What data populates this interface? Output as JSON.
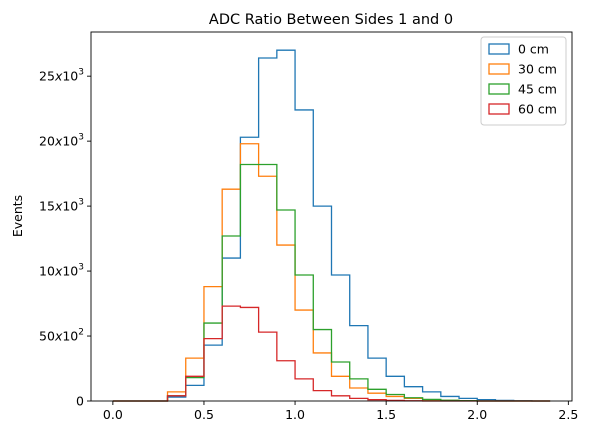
{
  "chart_data": {
    "type": "histogram-step",
    "title": "ADC Ratio Between Sides 1 and 0",
    "xlabel": "",
    "ylabel": "Events",
    "xlim": [
      -0.12,
      2.52
    ],
    "ylim": [
      0,
      28400
    ],
    "bin_edges": [
      0.0,
      0.1,
      0.2,
      0.3,
      0.4,
      0.5,
      0.6,
      0.7,
      0.8,
      0.9,
      1.0,
      1.1,
      1.2,
      1.3,
      1.4,
      1.5,
      1.6,
      1.7,
      1.8,
      1.9,
      2.0,
      2.1,
      2.2,
      2.3,
      2.4
    ],
    "xticks": [
      {
        "value": 0.0,
        "label": "0.0"
      },
      {
        "value": 0.5,
        "label": "0.5"
      },
      {
        "value": 1.0,
        "label": "1.0"
      },
      {
        "value": 1.5,
        "label": "1.5"
      },
      {
        "value": 2.0,
        "label": "2.0"
      },
      {
        "value": 2.5,
        "label": "2.5"
      }
    ],
    "yticks": [
      {
        "value": 0,
        "label": "0"
      },
      {
        "value": 5000,
        "label": "50x10",
        "exp": "2"
      },
      {
        "value": 10000,
        "label": "10x10",
        "exp": "3"
      },
      {
        "value": 15000,
        "label": "15x10",
        "exp": "3"
      },
      {
        "value": 20000,
        "label": "20x10",
        "exp": "3"
      },
      {
        "value": 25000,
        "label": "25x10",
        "exp": "3"
      }
    ],
    "legend_position": "top-right",
    "series": [
      {
        "name": "0 cm",
        "color": "#1f77b4",
        "values": [
          0,
          0,
          0,
          300,
          1200,
          4300,
          11000,
          20300,
          26400,
          27000,
          22400,
          15000,
          9700,
          5800,
          3300,
          1900,
          1100,
          700,
          350,
          200,
          100,
          50,
          20,
          0
        ]
      },
      {
        "name": "30 cm",
        "color": "#ff7f0e",
        "values": [
          0,
          0,
          0,
          700,
          3300,
          8800,
          16300,
          19800,
          17300,
          12000,
          7000,
          3700,
          1900,
          1000,
          600,
          350,
          200,
          100,
          50,
          20,
          0,
          0,
          0,
          0
        ]
      },
      {
        "name": "45 cm",
        "color": "#2ca02c",
        "values": [
          0,
          0,
          0,
          400,
          1800,
          6000,
          12700,
          18200,
          18200,
          14700,
          9700,
          5500,
          3000,
          1700,
          900,
          500,
          250,
          120,
          60,
          30,
          0,
          0,
          0,
          0
        ]
      },
      {
        "name": "60 cm",
        "color": "#d62728",
        "values": [
          0,
          0,
          0,
          400,
          1900,
          4800,
          7300,
          7200,
          5300,
          3100,
          1700,
          800,
          400,
          200,
          100,
          50,
          20,
          0,
          0,
          0,
          0,
          0,
          0,
          0
        ]
      }
    ]
  }
}
